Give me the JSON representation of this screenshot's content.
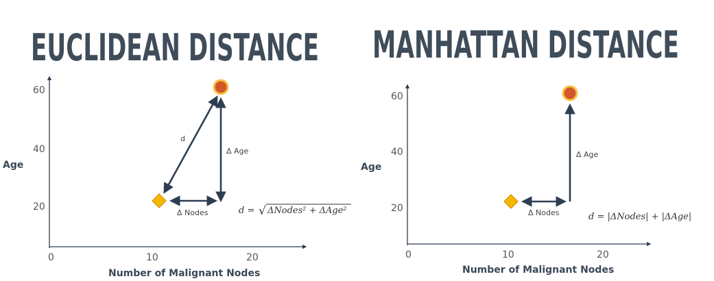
{
  "panels": [
    {
      "id": "euclidean",
      "title": "EUCLIDEAN DISTANCE",
      "y_axis_label": "Age",
      "x_axis_label": "Number of Malignant Nodes",
      "y_ticks": [
        "60",
        "40",
        "20"
      ],
      "x_ticks": [
        "0",
        "10",
        "20"
      ],
      "d_label": "d",
      "delta_age_label": "Δ Age",
      "delta_nodes_label": "Δ Nodes",
      "formula_lhs": "d =",
      "formula_rhs": "ΔNodes² + ΔAge²",
      "formula_radical": "√"
    },
    {
      "id": "manhattan",
      "title": "MANHATTAN DISTANCE",
      "y_axis_label": "Age",
      "x_axis_label": "Number of Malignant Nodes",
      "y_ticks": [
        "60",
        "40",
        "20"
      ],
      "x_ticks": [
        "0",
        "10",
        "20"
      ],
      "delta_age_label": "Δ Age",
      "delta_nodes_label": "Δ Nodes",
      "formula": "d = |ΔNodes| + |ΔAge|"
    }
  ],
  "colors": {
    "title": "#3f4d5a",
    "arrow": "#2e3e52",
    "circle_fill": "#d2572a",
    "circle_ring": "#f6c342",
    "diamond_fill": "#f5b800",
    "diamond_stroke": "#e08a00"
  },
  "shapes": {
    "point_a": "orange-diamond",
    "point_b": "orange-circle"
  }
}
